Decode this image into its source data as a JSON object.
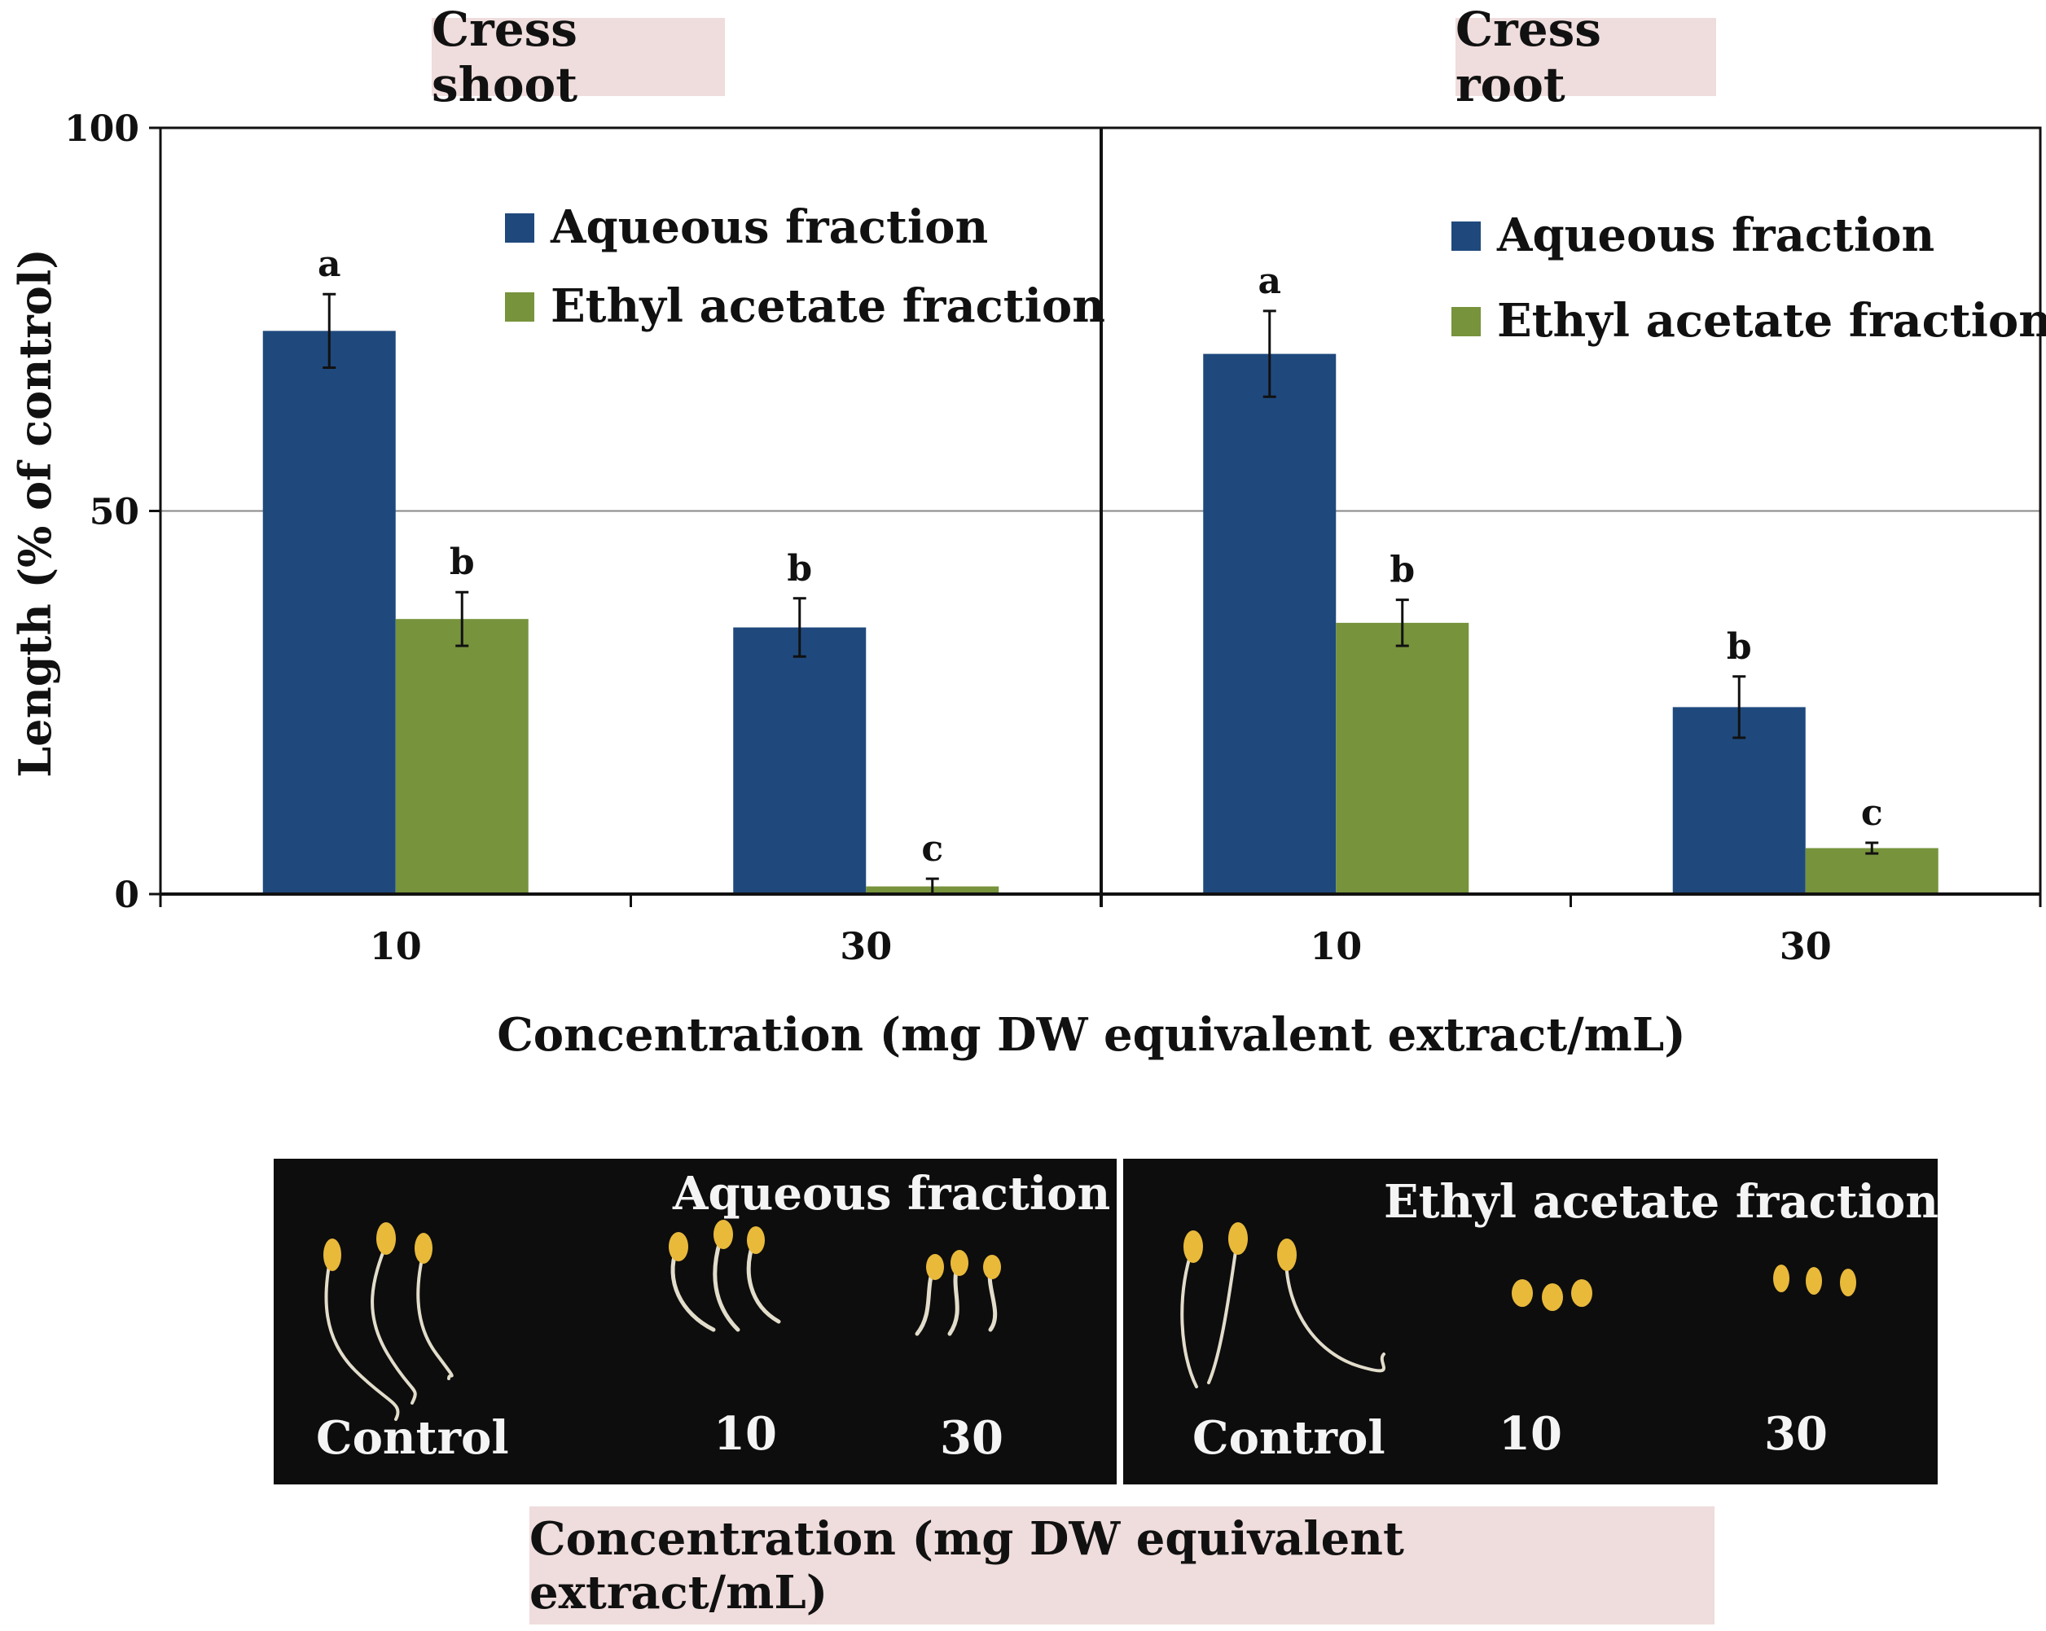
{
  "chart_data": [
    {
      "type": "bar",
      "title": "Cress shoot",
      "categories": [
        "10",
        "30"
      ],
      "series": [
        {
          "name": "Aqueous fraction",
          "color": "#1f497d",
          "values": [
            73.5,
            34.8
          ],
          "errors": [
            4.8,
            3.8
          ],
          "letters": [
            "a",
            "b"
          ]
        },
        {
          "name": "Ethyl acetate fraction",
          "color": "#77933c",
          "values": [
            35.9,
            1.0
          ],
          "errors": [
            3.5,
            1.0
          ],
          "letters": [
            "b",
            "c"
          ]
        }
      ],
      "ylabel": "Length (% of  control)",
      "ylim": [
        0,
        100
      ],
      "yticks": [
        "0",
        "50",
        "100"
      ],
      "gridlines": [
        50
      ]
    },
    {
      "type": "bar",
      "title": "Cress root",
      "categories": [
        "10",
        "30"
      ],
      "series": [
        {
          "name": "Aqueous fraction",
          "color": "#1f497d",
          "values": [
            70.5,
            24.4
          ],
          "errors": [
            5.6,
            4.0
          ],
          "letters": [
            "a",
            "b"
          ]
        },
        {
          "name": "Ethyl acetate fraction",
          "color": "#77933c",
          "values": [
            35.4,
            6.0
          ],
          "errors": [
            3.0,
            0.7
          ],
          "letters": [
            "b",
            "c"
          ]
        }
      ],
      "ylim": [
        0,
        100
      ]
    }
  ],
  "xlabel": "Concentration (mg DW equivalent extract/mL)",
  "photos": {
    "left": {
      "header": "Aqueous fraction",
      "labels": [
        "Control",
        "10",
        "30"
      ]
    },
    "right": {
      "header": "Ethyl acetate fraction",
      "labels": [
        "Control",
        "10",
        "30"
      ]
    },
    "caption": "Concentration (mg DW equivalent extract/mL)",
    "seed_color": "#e9b93a",
    "root_color": "#e2dccb"
  }
}
